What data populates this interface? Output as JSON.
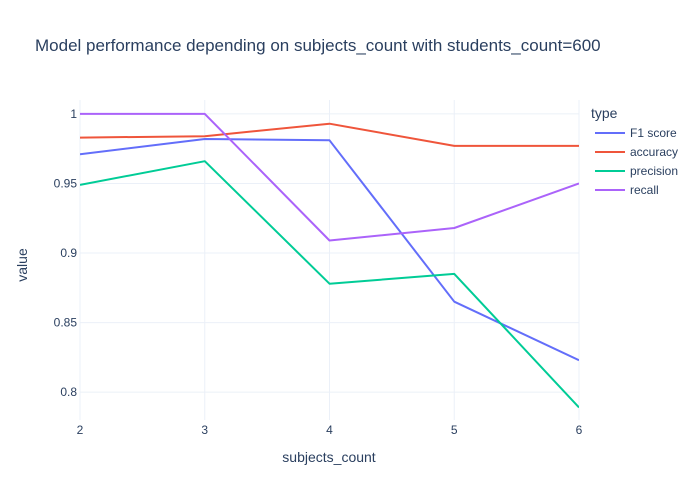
{
  "chart_data": {
    "type": "line",
    "title": "Model performance depending on subjects_count with students_count=600",
    "xlabel": "subjects_count",
    "ylabel": "value",
    "x": [
      2,
      3,
      4,
      5,
      6
    ],
    "x_ticks": [
      "2",
      "3",
      "4",
      "5",
      "6"
    ],
    "y_ticks": [
      "0.8",
      "0.85",
      "0.9",
      "0.95",
      "1"
    ],
    "y_tick_values": [
      0.8,
      0.85,
      0.9,
      0.95,
      1.0
    ],
    "xlim": [
      2,
      6
    ],
    "ylim": [
      0.78,
      1.01
    ],
    "grid": true,
    "legend_placement": "top-right",
    "legend_title": "type",
    "series": [
      {
        "name": "F1 score",
        "color": "#636efa",
        "values": [
          0.971,
          0.982,
          0.981,
          0.865,
          0.823
        ]
      },
      {
        "name": "accuracy",
        "color": "#ef553b",
        "values": [
          0.983,
          0.984,
          0.993,
          0.977,
          0.977
        ]
      },
      {
        "name": "precision",
        "color": "#00cc96",
        "values": [
          0.949,
          0.966,
          0.878,
          0.885,
          0.789
        ]
      },
      {
        "name": "recall",
        "color": "#ab63fa",
        "values": [
          1.0,
          1.0,
          0.909,
          0.918,
          0.95
        ]
      }
    ]
  }
}
